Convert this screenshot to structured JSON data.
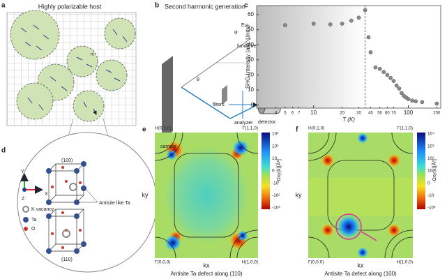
{
  "panel_a": {
    "label": "a",
    "title": "Highly polarizable host",
    "annotation": "rc"
  },
  "panel_b": {
    "label": "b",
    "title": "Second harmonic generation",
    "fundamental": "fundamental",
    "sample": "sample",
    "filters": "filters",
    "analyzer": "analyzer",
    "detector": "detector",
    "theta": "θ",
    "phi": "φ",
    "field": "Eω"
  },
  "chart_data": {
    "type": "scatter",
    "label": "c",
    "ylabel": "SHG Intensity (arb. Units)",
    "xlabel": "T (K)",
    "x": [
      5,
      10,
      15,
      20,
      25,
      30,
      35,
      38,
      40,
      45,
      50,
      55,
      60,
      65,
      70,
      75,
      80,
      85,
      90,
      95,
      100,
      110,
      120,
      140,
      200
    ],
    "values": [
      53,
      54,
      53.5,
      54,
      56,
      58,
      63,
      45,
      35,
      25,
      24,
      22,
      20,
      18,
      16,
      13,
      11,
      8,
      6,
      5,
      4,
      3,
      2.5,
      2,
      1
    ],
    "xlim": [
      2.5,
      220
    ],
    "xticks": [
      4,
      5,
      6,
      7,
      10,
      20,
      30,
      40,
      50,
      60,
      70,
      100,
      200
    ],
    "log_x": true,
    "ylim": [
      -2,
      66
    ],
    "yticks": [
      0,
      10,
      20,
      30,
      40,
      50,
      60
    ],
    "vline": 35,
    "color": "#8a8a8a"
  },
  "panel_d": {
    "label": "d",
    "top_plane": "(100)",
    "bottom_plane": "(110)",
    "axis_y": "Y",
    "axis_x": "X",
    "axis_z": "Z",
    "k_vacancy": "K vacancy",
    "ta": "Ta",
    "o": "O",
    "antisite": "Antisite like Ta"
  },
  "panel_e": {
    "label": "e",
    "corner_tl": "H(0,1,0)",
    "corner_tr": "Γ(1,1,0)",
    "corner_bl": "Γ(0,0,0)",
    "corner_br": "H(1,0,0)",
    "ky": "ky",
    "kx": "kx",
    "caption": "Antisite Ta defect along (110)",
    "colorbar_label": "-Ωxy(k)[Å²]",
    "colorbar_ticks": [
      "10³",
      "10²",
      "10",
      "0",
      "-10",
      "-10²",
      "-10³"
    ]
  },
  "panel_f": {
    "label": "f",
    "corner_tl": "H(0,1,0)",
    "corner_tr": "Γ(1,1,0)",
    "corner_bl": "Γ(0,0,0)",
    "corner_br": "H(1,0,0)",
    "ky": "ky",
    "kx": "kx",
    "caption": "Antisite Ta defect along (100)",
    "colorbar_label": "-Ωxy(k)[Å²]",
    "colorbar_ticks": [
      "10⁴",
      "10³",
      "10²",
      "10",
      "0",
      "-10",
      "-10²"
    ]
  }
}
